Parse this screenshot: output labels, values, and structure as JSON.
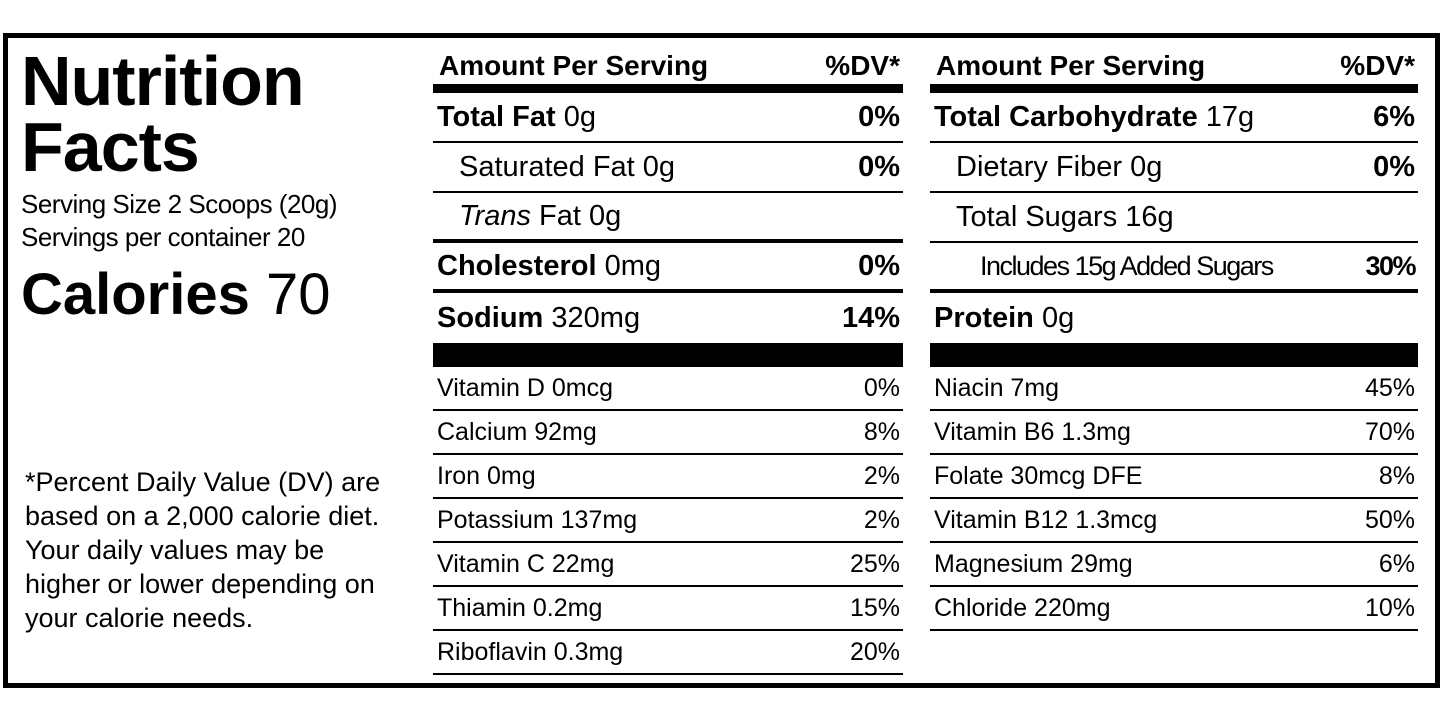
{
  "title": "Nutrition Facts",
  "serving_size": "Serving Size 2 Scoops (20g)",
  "servings": "Servings per container 20",
  "calories_label": "Calories",
  "calories": 70,
  "footnote": "*Percent Daily Value (DV) are based on a 2,000 calorie diet. Your daily values may be higher or lower depending on your calorie needs.",
  "middle": {
    "header": {
      "amount": "Amount Per Serving",
      "dv": "%DV*"
    },
    "nutrients": [
      {
        "name": "Total Fat",
        "amount": "0g",
        "dv": "0%"
      },
      {
        "name": "Saturated Fat",
        "amount": "0g",
        "dv": "0%"
      },
      {
        "name_italic": "Trans",
        "name": "Fat",
        "amount": "0g"
      },
      {
        "name": "Cholesterol",
        "amount": "0mg",
        "dv": "0%"
      },
      {
        "name": "Sodium",
        "amount": "320mg",
        "dv": "14%"
      }
    ],
    "vitamins": [
      {
        "name": "Vitamin D 0mcg",
        "dv": "0%"
      },
      {
        "name": "Calcium 92mg",
        "dv": "8%"
      },
      {
        "name": "Iron 0mg",
        "dv": "2%"
      },
      {
        "name": "Potassium 137mg",
        "dv": "2%"
      },
      {
        "name": "Vitamin C 22mg",
        "dv": "25%"
      },
      {
        "name": "Thiamin 0.2mg",
        "dv": "15%"
      },
      {
        "name": "Riboflavin 0.3mg",
        "dv": "20%"
      }
    ]
  },
  "right": {
    "header": {
      "amount": "Amount Per Serving",
      "dv": "%DV*"
    },
    "nutrients": [
      {
        "name": "Total Carbohydrate",
        "amount": "17g",
        "dv": "6%"
      },
      {
        "name": "Dietary Fiber",
        "amount": "0g",
        "dv": "0%"
      },
      {
        "name": "Total Sugars",
        "amount": "16g"
      },
      {
        "name": "Includes 15g Added Sugars",
        "dv": "30%"
      },
      {
        "name": "Protein",
        "amount": "0g"
      }
    ],
    "vitamins": [
      {
        "name": "Niacin 7mg",
        "dv": "45%"
      },
      {
        "name": "Vitamin B6 1.3mg",
        "dv": "70%"
      },
      {
        "name": "Folate 30mcg DFE",
        "dv": "8%"
      },
      {
        "name": "Vitamin B12 1.3mcg",
        "dv": "50%"
      },
      {
        "name": "Magnesium 29mg",
        "dv": "6%"
      },
      {
        "name": "Chloride 220mg",
        "dv": "10%"
      }
    ]
  }
}
